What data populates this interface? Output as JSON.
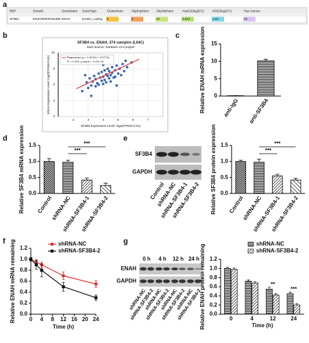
{
  "panel_labels": [
    "a",
    "b",
    "c",
    "d",
    "e",
    "f",
    "g"
  ],
  "table": {
    "columns": [
      "RBP",
      "GeneID",
      "GeneName",
      "GeneType",
      "ClusterNum",
      "ClipExpNum",
      "ClipSiteNum",
      "HepG2(log2FC)",
      "K562(log2FC)",
      "Pan-Cancer"
    ],
    "rows": [
      [
        "SF3B4",
        "ENSG00000154380",
        "ENAH",
        "protein_coding",
        "9",
        "2",
        "15",
        "0.623",
        "1.94",
        "15"
      ]
    ]
  },
  "blots": {
    "e": {
      "rows": [
        "SF3B4",
        "GAPDH"
      ],
      "lanes": [
        "Control",
        "shRNA-NC",
        "shRNA-SF3B4-1",
        "shRNA-SF3B4-2"
      ]
    },
    "g": {
      "times": [
        "0 h",
        "4 h",
        "12 h",
        "24 h"
      ],
      "rows": [
        "ENAH",
        "GAPDH"
      ],
      "lanes": [
        "shRNA-NC",
        "shRNA-SF3B4-2",
        "shRNA-NC",
        "shRNA-SF3B4-2",
        "shRNA-NC",
        "shRNA-SF3B4-2",
        "shRNA-NC",
        "shRNA-SF3B4-2"
      ]
    }
  },
  "chart_data": [
    {
      "type": "scatter",
      "title": "SF3B4 vs. ENAH, 374 samples (LIHC)",
      "subtitle": "Data Source: starBase v3.0 project",
      "xlabel": "SF3B4 Expression Level: log2(FPKM+0.01)",
      "ylabel": "ENAH Expression Level: log2(FPKM+0.01)",
      "legend": [
        "Regression (y = 0.8749x + 3.5774)",
        "R = 0.378, p-value = 3.47e-15"
      ],
      "color": "#3b6cc4",
      "line_color": "#e04040",
      "x": [
        2.6,
        2.9,
        3.0,
        3.1,
        3.2,
        3.3,
        3.4,
        3.5,
        3.5,
        3.6,
        3.7,
        3.7,
        3.8,
        3.9,
        3.9,
        4.0,
        4.0,
        4.1,
        4.1,
        4.2,
        4.2,
        4.3,
        4.3,
        4.4,
        4.4,
        4.5,
        4.5,
        4.6,
        4.6,
        4.7,
        4.8,
        4.8,
        4.9,
        5.0,
        5.1,
        5.2,
        5.3,
        5.4,
        5.6,
        5.9,
        3.2,
        4.9,
        2.8,
        5.5,
        4.0
      ],
      "y": [
        5.2,
        6.3,
        5.6,
        6.8,
        5.9,
        6.4,
        7.1,
        5.8,
        6.7,
        6.2,
        7.4,
        6.0,
        6.9,
        6.5,
        7.6,
        6.1,
        7.0,
        7.8,
        6.6,
        7.3,
        6.3,
        8.0,
        7.1,
        6.8,
        7.7,
        7.2,
        6.4,
        8.2,
        7.5,
        6.9,
        7.8,
        7.0,
        8.4,
        7.4,
        8.0,
        7.2,
        8.6,
        7.7,
        8.2,
        8.8,
        4.6,
        5.9,
        7.2,
        9.0,
        8.5
      ],
      "regression_line": {
        "x": [
          2.2,
          6.4
        ],
        "y": [
          5.5,
          9.2
        ]
      },
      "xlim": [
        1,
        8
      ],
      "xticks": [
        2,
        3,
        4,
        5,
        6,
        7
      ],
      "ylim": [
        2,
        10
      ],
      "yticks": [
        2,
        4,
        6,
        8,
        10
      ]
    },
    {
      "type": "bar",
      "ylabel": "Relative ENAH mRNA expression",
      "categories": [
        "anti-IgG",
        "anti-SF3B4"
      ],
      "values": [
        0.1,
        10.1
      ],
      "errors": [
        0.05,
        0.5
      ],
      "ylim": [
        0,
        15
      ],
      "yticks": [
        0,
        5,
        10,
        15
      ]
    },
    {
      "type": "bar",
      "ylabel": "Relative SF3B4 mRNA expression",
      "categories": [
        "Control",
        "shRNA-NC",
        "shRNA-SF3B4-1",
        "shRNA-SF3B4-2"
      ],
      "values": [
        1.0,
        0.98,
        0.42,
        0.25
      ],
      "errors": [
        0.09,
        0.06,
        0.06,
        0.07
      ],
      "ylim": [
        0,
        1.5
      ],
      "yticks": [
        {
          "value": 0,
          "label": "0.0"
        },
        0.5,
        {
          "value": 1,
          "label": "1.0"
        },
        1.5
      ],
      "significance": [
        "***",
        "***"
      ]
    },
    {
      "type": "bar",
      "ylabel": "Relative SF3B4 protein expression",
      "categories": [
        "Control",
        "shRNA-NC",
        "shRNA-SF3B4-1",
        "shRNA-SF3B4-2"
      ],
      "values": [
        1.0,
        0.98,
        0.55,
        0.42
      ],
      "errors": [
        0.04,
        0.09,
        0.05,
        0.05
      ],
      "ylim": [
        0,
        1.5
      ],
      "yticks": [
        {
          "value": 0,
          "label": "0.0"
        },
        0.5,
        {
          "value": 1,
          "label": "1.0"
        },
        1.5
      ],
      "significance": [
        "***",
        "***"
      ]
    },
    {
      "type": "line",
      "ylabel": "Relative ENAH mRNA remaining",
      "xlabel": "Time (h)",
      "x": [
        0,
        2,
        4,
        12,
        24
      ],
      "series": [
        {
          "name": "shRNA-NC",
          "color": "#e03030",
          "marker": "circle",
          "values": [
            1.0,
            0.95,
            0.9,
            0.7,
            0.55
          ],
          "errors": [
            0.03,
            0.05,
            0.05,
            0.07,
            0.06
          ]
        },
        {
          "name": "shRNA-SF3B4-2",
          "color": "#111111",
          "marker": "square",
          "values": [
            1.0,
            0.9,
            0.8,
            0.5,
            0.3
          ],
          "errors": [
            0.03,
            0.08,
            0.12,
            0.08,
            0.05
          ]
        }
      ],
      "xlim": [
        0,
        24
      ],
      "xticks": [
        0,
        4,
        8,
        12,
        16,
        20,
        24
      ],
      "ylim": [
        0,
        1.2
      ],
      "yticks": [
        {
          "value": 0,
          "label": "0.0"
        },
        0.2,
        0.4,
        0.6,
        0.8,
        {
          "value": 1,
          "label": "1.0"
        },
        1.2
      ],
      "legend": "upper right"
    },
    {
      "type": "bar",
      "ylabel": "Relative ENAH protein remaining",
      "xlabel": "Time (h)",
      "categories": [
        "0",
        "4",
        "12",
        "24"
      ],
      "series": [
        {
          "name": "shRNA-NC",
          "values": [
            1.0,
            0.72,
            0.55,
            0.45
          ],
          "errors": [
            0.03,
            0.03,
            0.04,
            0.03
          ]
        },
        {
          "name": "shRNA-SF3B4-2",
          "values": [
            0.98,
            0.68,
            0.42,
            0.2
          ],
          "errors": [
            0.03,
            0.03,
            0.03,
            0.03
          ]
        }
      ],
      "significance": [
        null,
        null,
        "**",
        "***"
      ],
      "ylim": [
        0,
        1.2
      ],
      "yticks": [
        {
          "value": 0,
          "label": "0.0"
        },
        0.2,
        0.4,
        0.6,
        0.8,
        {
          "value": 1,
          "label": "1.0"
        },
        1.2
      ],
      "legend": "upper right"
    }
  ]
}
